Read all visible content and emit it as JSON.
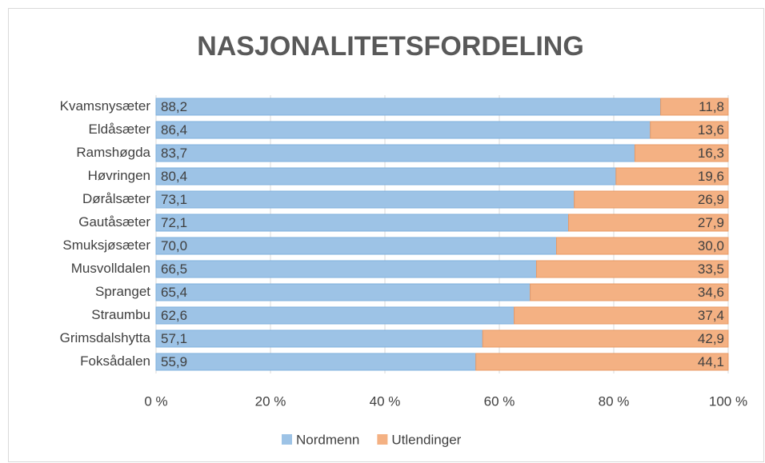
{
  "chart_data": {
    "type": "stacked_bar_horizontal",
    "title": "NASJONALITETSFORDELING",
    "categories": [
      "Kvamsnysæter",
      "Eldåsæter",
      "Ramshøgda",
      "Høvringen",
      "Dørålsæter",
      "Gautåsæter",
      "Smuksjøsæter",
      "Musvolldalen",
      "Spranget",
      "Straumbu",
      "Grimsdalshytta",
      "Foksådalen"
    ],
    "series": [
      {
        "name": "Nordmenn",
        "color": "#9dc3e6",
        "values": [
          88.2,
          86.4,
          83.7,
          80.4,
          73.1,
          72.1,
          70.0,
          66.5,
          65.4,
          62.6,
          57.1,
          55.9
        ],
        "value_labels": [
          "88,2",
          "86,4",
          "83,7",
          "80,4",
          "73,1",
          "72,1",
          "70,0",
          "66,5",
          "65,4",
          "62,6",
          "57,1",
          "55,9"
        ]
      },
      {
        "name": "Utlendinger",
        "color": "#f4b183",
        "values": [
          11.8,
          13.6,
          16.3,
          19.6,
          26.9,
          27.9,
          30.0,
          33.5,
          34.6,
          37.4,
          42.9,
          44.1
        ],
        "value_labels": [
          "11,8",
          "13,6",
          "16,3",
          "19,6",
          "26,9",
          "27,9",
          "30,0",
          "33,5",
          "34,6",
          "37,4",
          "42,9",
          "44,1"
        ]
      }
    ],
    "xlim": [
      0,
      100
    ],
    "xticks": [
      {
        "value": 0,
        "label": "0 %"
      },
      {
        "value": 20,
        "label": "20 %"
      },
      {
        "value": 40,
        "label": "40 %"
      },
      {
        "value": 60,
        "label": "60 %"
      },
      {
        "value": 80,
        "label": "80 %"
      },
      {
        "value": 100,
        "label": "100 %"
      }
    ],
    "grid": true,
    "legend": "bottom"
  }
}
